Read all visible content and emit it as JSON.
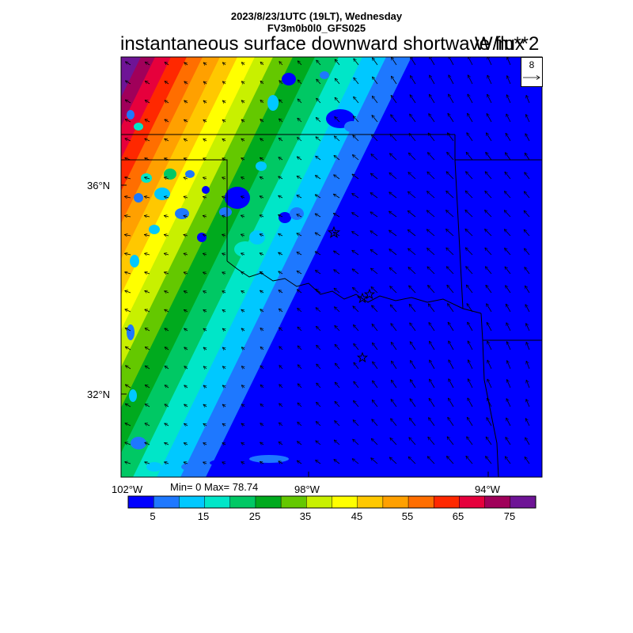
{
  "header": {
    "line1": "2023/8/23/1UTC (19LT), Wednesday",
    "line2": "FV3m0b0l0_GFS025",
    "title": "instantaneous surface downward shortwave flux",
    "units": "W/m**2"
  },
  "stats": {
    "text": "Min= 0 Max= 78.74",
    "min": 0,
    "max": 78.74
  },
  "axes": {
    "lat_labels": [
      "36°N",
      "32°N"
    ],
    "lon_labels": [
      "102°W",
      "98°W",
      "94°W"
    ]
  },
  "reference_vector": {
    "value": "8"
  },
  "colorbar": {
    "labels": [
      "5",
      "15",
      "25",
      "35",
      "45",
      "55",
      "65",
      "75"
    ],
    "colors": [
      "#0000ff",
      "#1e78ff",
      "#00c8ff",
      "#00e6c8",
      "#00c864",
      "#00aa1e",
      "#64c800",
      "#c8f000",
      "#ffff00",
      "#ffc800",
      "#ffa000",
      "#ff6e00",
      "#ff2800",
      "#e6003c",
      "#a0005a",
      "#6e1496"
    ]
  },
  "map": {
    "field": "surface downward shortwave flux",
    "gradient": "high values west decreasing eastward",
    "features": [
      "state-borders",
      "wind-vectors",
      "station-stars"
    ]
  }
}
